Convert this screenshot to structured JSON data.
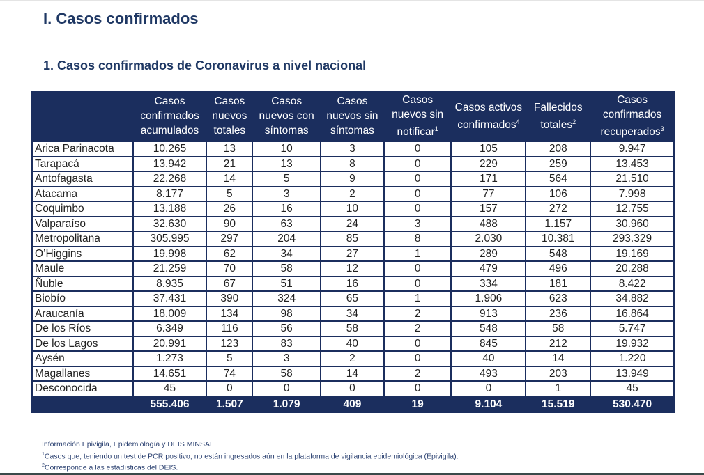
{
  "title": "I. Casos confirmados",
  "subtitle": "1. Casos confirmados de Coronavirus a nivel nacional",
  "headers": [
    {
      "lines": [
        ""
      ],
      "sup": ""
    },
    {
      "lines": [
        "Casos",
        "confirmados",
        "acumulados"
      ],
      "sup": ""
    },
    {
      "lines": [
        "Casos",
        "nuevos",
        "totales"
      ],
      "sup": ""
    },
    {
      "lines": [
        "Casos",
        "nuevos con",
        "síntomas"
      ],
      "sup": ""
    },
    {
      "lines": [
        "Casos",
        "nuevos sin",
        "síntomas"
      ],
      "sup": ""
    },
    {
      "lines": [
        "Casos",
        "nuevos sin",
        "notificar"
      ],
      "sup": "1"
    },
    {
      "lines": [
        "Casos activos",
        "confirmados"
      ],
      "sup": "4"
    },
    {
      "lines": [
        "Fallecidos",
        "totales"
      ],
      "sup": "2"
    },
    {
      "lines": [
        "Casos",
        "confirmados",
        "recuperados"
      ],
      "sup": "3"
    }
  ],
  "rows": [
    [
      "Arica Parinacota",
      "10.265",
      "13",
      "10",
      "3",
      "0",
      "105",
      "208",
      "9.947"
    ],
    [
      "Tarapacá",
      "13.942",
      "21",
      "13",
      "8",
      "0",
      "229",
      "259",
      "13.453"
    ],
    [
      "Antofagasta",
      "22.268",
      "14",
      "5",
      "9",
      "0",
      "171",
      "564",
      "21.510"
    ],
    [
      "Atacama",
      "8.177",
      "5",
      "3",
      "2",
      "0",
      "77",
      "106",
      "7.998"
    ],
    [
      "Coquimbo",
      "13.188",
      "26",
      "16",
      "10",
      "0",
      "157",
      "272",
      "12.755"
    ],
    [
      "Valparaíso",
      "32.630",
      "90",
      "63",
      "24",
      "3",
      "488",
      "1.157",
      "30.960"
    ],
    [
      "Metropolitana",
      "305.995",
      "297",
      "204",
      "85",
      "8",
      "2.030",
      "10.381",
      "293.329"
    ],
    [
      "O’Higgins",
      "19.998",
      "62",
      "34",
      "27",
      "1",
      "289",
      "548",
      "19.169"
    ],
    [
      "Maule",
      "21.259",
      "70",
      "58",
      "12",
      "0",
      "479",
      "496",
      "20.288"
    ],
    [
      "Ñuble",
      "8.935",
      "67",
      "51",
      "16",
      "0",
      "334",
      "181",
      "8.422"
    ],
    [
      "Biobío",
      "37.431",
      "390",
      "324",
      "65",
      "1",
      "1.906",
      "623",
      "34.882"
    ],
    [
      "Araucanía",
      "18.009",
      "134",
      "98",
      "34",
      "2",
      "913",
      "236",
      "16.864"
    ],
    [
      "De los Ríos",
      "6.349",
      "116",
      "56",
      "58",
      "2",
      "548",
      "58",
      "5.747"
    ],
    [
      "De los Lagos",
      "20.991",
      "123",
      "83",
      "40",
      "0",
      "845",
      "212",
      "19.932"
    ],
    [
      "Aysén",
      "1.273",
      "5",
      "3",
      "2",
      "0",
      "40",
      "14",
      "1.220"
    ],
    [
      "Magallanes",
      "14.651",
      "74",
      "58",
      "14",
      "2",
      "493",
      "203",
      "13.949"
    ],
    [
      "Desconocida",
      "45",
      "0",
      "0",
      "0",
      "0",
      "0",
      "1",
      "45"
    ]
  ],
  "totals": [
    "",
    "555.406",
    "1.507",
    "1.079",
    "409",
    "19",
    "9.104",
    "15.519",
    "530.470"
  ],
  "footnotes": [
    {
      "sup": "",
      "text": "Información Epivigila, Epidemiología y DEIS MINSAL"
    },
    {
      "sup": "1",
      "text": "Casos que, teniendo un test de PCR positivo, no están ingresados aún en la plataforma de vigilancia epidemiológica (Epivigila)."
    },
    {
      "sup": "2",
      "text": "Corresponde a las estadísticas del DEIS."
    }
  ]
}
